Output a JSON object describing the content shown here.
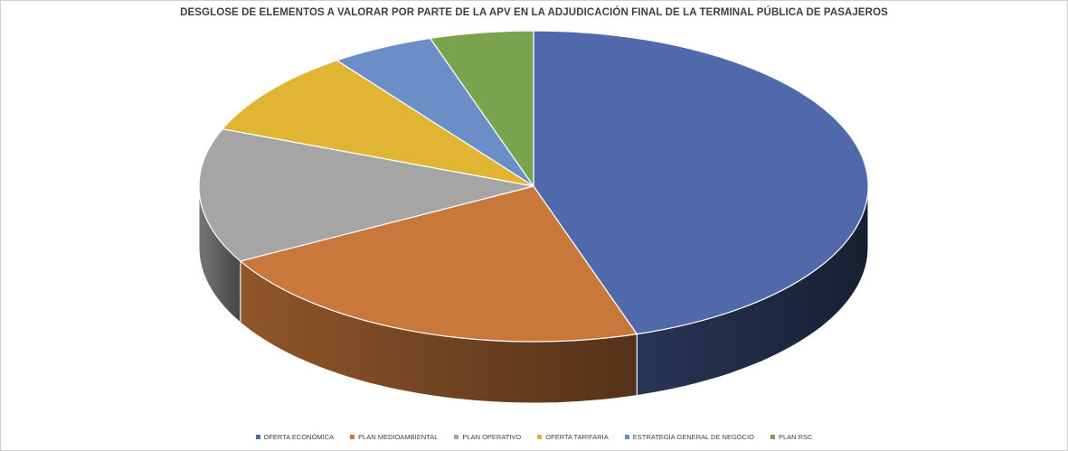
{
  "chart_data": {
    "type": "pie",
    "title": "DESGLOSE DE ELEMENTOS A VALORAR POR PARTE DE LA APV EN LA ADJUDICACIÓN FINAL DE LA TERMINAL PÚBLICA DE PASAJEROS",
    "categories": [
      "OFERTA ECONÓMICA",
      "PLAN MEDIOAMBIENTAL",
      "PLAN OPERATIVO",
      "OFERTA TARIFARIA",
      "ESTRATEGIA GENERAL DE NEGOCIO",
      "PLAN RSC"
    ],
    "values": [
      45,
      22,
      14,
      9,
      5,
      5
    ],
    "colors": [
      "#4f69aa",
      "#c8783b",
      "#a5a5a5",
      "#e0b533",
      "#6b8ec6",
      "#7aa34d"
    ],
    "legend_position": "bottom",
    "three_d": true
  }
}
